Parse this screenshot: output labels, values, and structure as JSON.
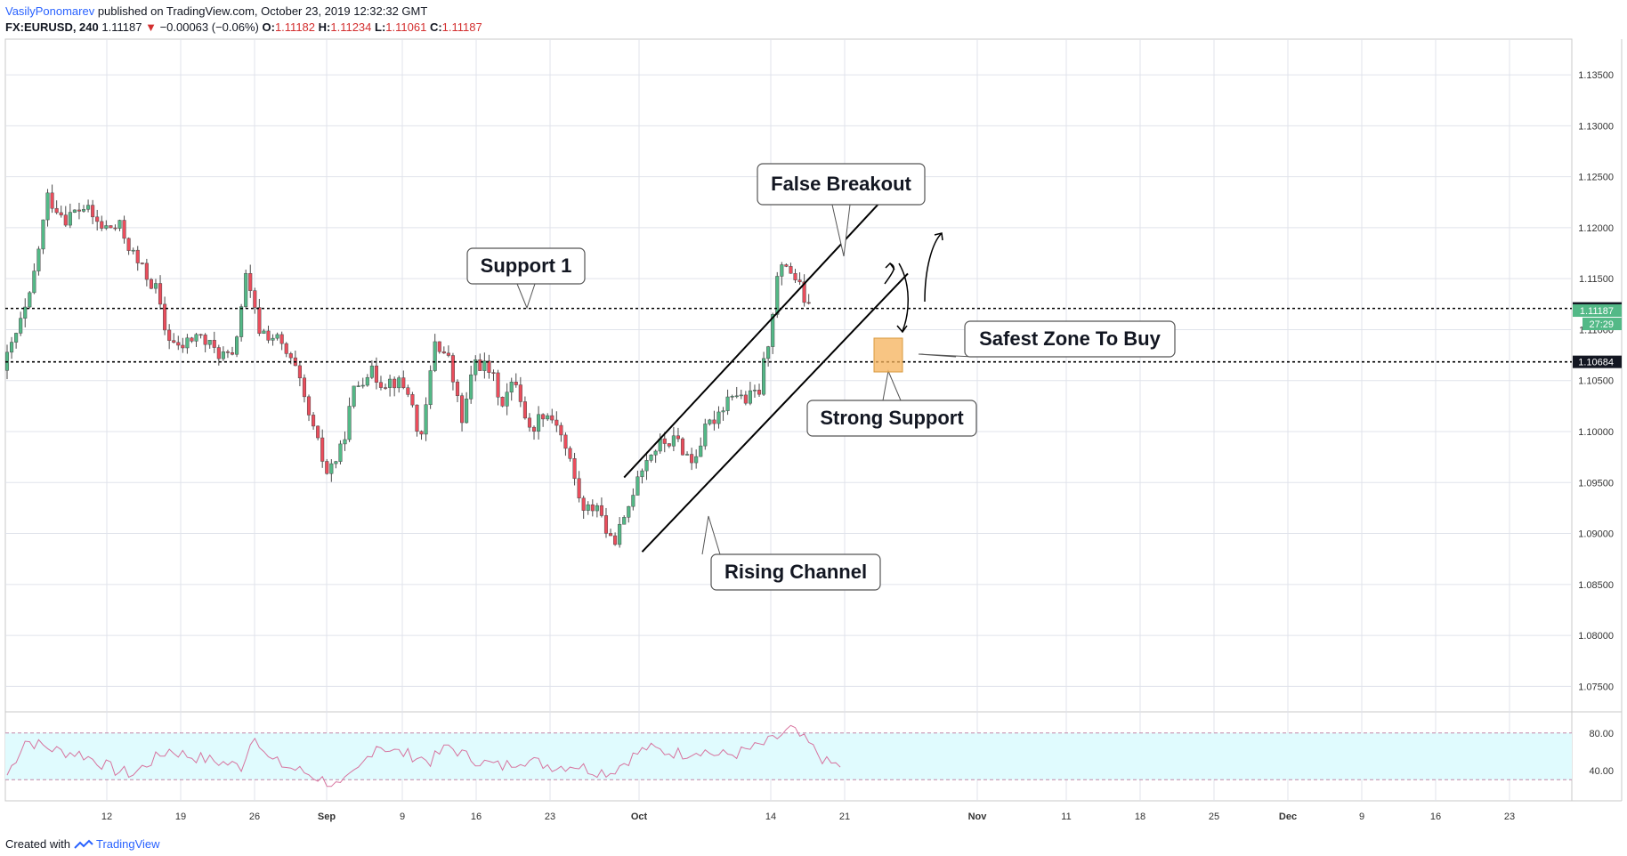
{
  "header": {
    "author": "VasilyPonomarev",
    "published": "published on TradingView.com, October 23, 2019 12:32:32 GMT",
    "symbol": "FX:EURUSD, 240",
    "last": "1.11187",
    "change": "−0.00063 (−0.06%)",
    "o_label": "O:",
    "o_value": "1.11182",
    "h_label": "H:",
    "h_value": "1.11234",
    "l_label": "L:",
    "l_value": "1.11061",
    "c_label": "C:",
    "c_value": "1.11187"
  },
  "footer": {
    "created_with": "Created with",
    "brand": "TradingView"
  },
  "colors": {
    "up": "#53b987",
    "down": "#eb4d5c",
    "grid": "#e0e3eb",
    "rsi": "#d7749f",
    "rsi_band": "#e0fbfe",
    "zone": "#f5b25a",
    "accent": "#2962ff"
  },
  "chart_data": {
    "type": "candlestick",
    "symbol": "FX:EURUSD",
    "timeframe": "240",
    "ylim": [
      1.0725,
      1.1385
    ],
    "y_ticks": [
      "1.13500",
      "1.13000",
      "1.12500",
      "1.12000",
      "1.11500",
      "1.11000",
      "1.10500",
      "1.10000",
      "1.09500",
      "1.09000",
      "1.08500",
      "1.08000",
      "1.07500"
    ],
    "x_ticks": [
      "12",
      "19",
      "26",
      "Sep",
      "9",
      "16",
      "23",
      "Oct",
      "14",
      "21",
      "Nov",
      "11",
      "18",
      "25",
      "Dec",
      "9",
      "16",
      "23"
    ],
    "price_path": [
      [
        0,
        1.106
      ],
      [
        3,
        1.1095
      ],
      [
        6,
        1.113
      ],
      [
        10,
        1.123
      ],
      [
        14,
        1.121
      ],
      [
        18,
        1.122
      ],
      [
        22,
        1.12
      ],
      [
        26,
        1.12
      ],
      [
        30,
        1.1165
      ],
      [
        34,
        1.114
      ],
      [
        36,
        1.11
      ],
      [
        39,
        1.108
      ],
      [
        43,
        1.1095
      ],
      [
        47,
        1.108
      ],
      [
        51,
        1.107
      ],
      [
        54,
        1.115
      ],
      [
        57,
        1.11
      ],
      [
        61,
        1.109
      ],
      [
        65,
        1.106
      ],
      [
        69,
        1.1
      ],
      [
        72,
        1.096
      ],
      [
        75,
        1.098
      ],
      [
        78,
        1.104
      ],
      [
        81,
        1.106
      ],
      [
        84,
        1.105
      ],
      [
        87,
        1.105
      ],
      [
        90,
        1.104
      ],
      [
        93,
        1.099
      ],
      [
        96,
        1.109
      ],
      [
        99,
        1.107
      ],
      [
        102,
        1.101
      ],
      [
        105,
        1.107
      ],
      [
        108,
        1.106
      ],
      [
        111,
        1.103
      ],
      [
        114,
        1.105
      ],
      [
        117,
        1.1
      ],
      [
        120,
        1.102
      ],
      [
        123,
        1.101
      ],
      [
        126,
        1.097
      ],
      [
        129,
        1.092
      ],
      [
        132,
        1.093
      ],
      [
        135,
        1.089
      ],
      [
        138,
        1.091
      ],
      [
        141,
        1.096
      ],
      [
        144,
        1.098
      ],
      [
        147,
        1.099
      ],
      [
        150,
        1.099
      ],
      [
        153,
        1.097
      ],
      [
        156,
        1.1
      ],
      [
        159,
        1.102
      ],
      [
        162,
        1.104
      ],
      [
        165,
        1.103
      ],
      [
        168,
        1.104
      ],
      [
        170,
        1.109
      ],
      [
        172,
        1.115
      ],
      [
        174,
        1.1165
      ],
      [
        176,
        1.115
      ],
      [
        178,
        1.113
      ],
      [
        179,
        1.1119
      ]
    ],
    "last_price": 1.11187,
    "countdown": "27:29",
    "levels": [
      {
        "name": "Support 1",
        "price": 1.11208,
        "label": "1.11208",
        "style": "dotted"
      },
      {
        "name": "Strong Support",
        "price": 1.10684,
        "label": "1.10684",
        "style": "dotted"
      }
    ],
    "channel": {
      "upper": [
        [
          137,
          1.0955
        ],
        [
          197,
          1.124
        ]
      ],
      "lower": [
        [
          141,
          1.0882
        ],
        [
          200,
          1.1155
        ]
      ]
    },
    "annotations": [
      "False Breakout",
      "Support 1",
      "Safest Zone To Buy",
      "Strong Support",
      "Rising Channel"
    ],
    "rsi": {
      "y_ticks": [
        "80.00",
        "40.00"
      ],
      "bands": [
        80,
        30
      ],
      "path": [
        [
          0,
          35
        ],
        [
          4,
          72
        ],
        [
          8,
          66
        ],
        [
          12,
          60
        ],
        [
          16,
          58
        ],
        [
          20,
          50
        ],
        [
          24,
          40
        ],
        [
          28,
          36
        ],
        [
          32,
          50
        ],
        [
          36,
          62
        ],
        [
          40,
          56
        ],
        [
          44,
          52
        ],
        [
          48,
          48
        ],
        [
          52,
          44
        ],
        [
          55,
          80
        ],
        [
          58,
          52
        ],
        [
          62,
          44
        ],
        [
          66,
          38
        ],
        [
          70,
          30
        ],
        [
          74,
          22
        ],
        [
          78,
          40
        ],
        [
          82,
          68
        ],
        [
          86,
          60
        ],
        [
          90,
          56
        ],
        [
          94,
          50
        ],
        [
          98,
          66
        ],
        [
          102,
          55
        ],
        [
          106,
          48
        ],
        [
          110,
          44
        ],
        [
          114,
          52
        ],
        [
          118,
          48
        ],
        [
          122,
          44
        ],
        [
          126,
          46
        ],
        [
          130,
          40
        ],
        [
          134,
          38
        ],
        [
          138,
          52
        ],
        [
          142,
          64
        ],
        [
          146,
          60
        ],
        [
          150,
          58
        ],
        [
          154,
          62
        ],
        [
          158,
          56
        ],
        [
          162,
          58
        ],
        [
          166,
          64
        ],
        [
          170,
          72
        ],
        [
          174,
          84
        ],
        [
          178,
          68
        ],
        [
          182,
          48
        ],
        [
          186,
          44
        ]
      ]
    }
  }
}
